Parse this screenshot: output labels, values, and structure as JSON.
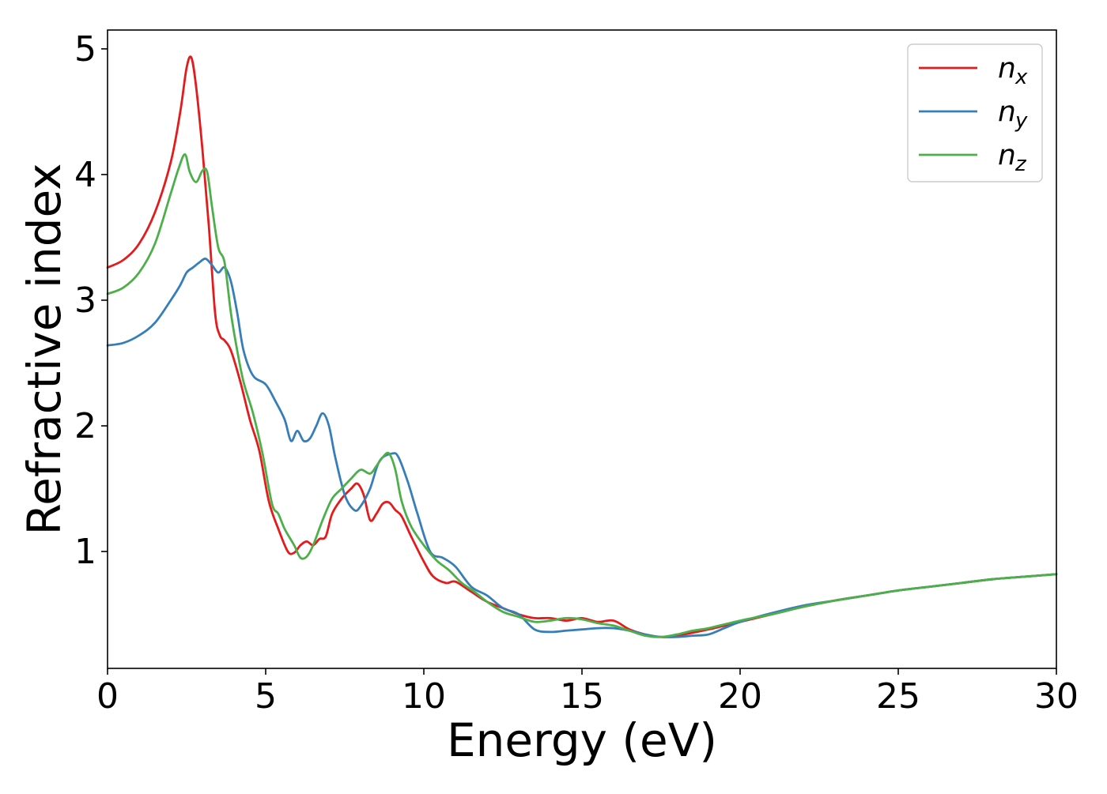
{
  "chart_data": {
    "type": "line",
    "title": "",
    "xlabel": "Energy (eV)",
    "ylabel": "Refractive index",
    "xlim": [
      0,
      30
    ],
    "ylim": [
      0.07,
      5.15
    ],
    "xticks": [
      0,
      5,
      10,
      15,
      20,
      25,
      30
    ],
    "yticks": [
      1,
      2,
      3,
      4,
      5
    ],
    "grid": false,
    "legend_position": "top-right",
    "series": [
      {
        "name": "n",
        "subscript": "x",
        "color": "#e41a1c",
        "x": [
          0,
          0.5,
          1,
          1.5,
          2,
          2.3,
          2.5,
          2.65,
          2.8,
          3.0,
          3.2,
          3.4,
          3.55,
          3.7,
          3.9,
          4.2,
          4.5,
          4.8,
          5.1,
          5.4,
          5.7,
          5.9,
          6.1,
          6.3,
          6.5,
          6.7,
          6.9,
          7.1,
          7.4,
          7.7,
          7.9,
          8.1,
          8.3,
          8.5,
          8.7,
          8.9,
          9.1,
          9.3,
          9.6,
          10.0,
          10.3,
          10.7,
          11.0,
          11.5,
          12.0,
          12.5,
          13.0,
          13.5,
          14.0,
          14.5,
          15.0,
          15.5,
          16.0,
          16.5,
          17.0,
          17.5,
          18.0,
          19.0,
          20.0,
          21.0,
          22.0,
          23.0,
          24.0,
          25.0,
          26.0,
          27.0,
          28.0,
          29.0,
          30.0
        ],
        "y": [
          3.26,
          3.32,
          3.45,
          3.7,
          4.1,
          4.5,
          4.85,
          4.93,
          4.7,
          4.2,
          3.6,
          2.9,
          2.72,
          2.68,
          2.6,
          2.35,
          2.05,
          1.8,
          1.4,
          1.18,
          1.0,
          0.99,
          1.05,
          1.08,
          1.05,
          1.1,
          1.12,
          1.3,
          1.42,
          1.5,
          1.54,
          1.45,
          1.25,
          1.3,
          1.38,
          1.39,
          1.33,
          1.28,
          1.12,
          0.92,
          0.8,
          0.75,
          0.76,
          0.68,
          0.6,
          0.55,
          0.5,
          0.47,
          0.47,
          0.45,
          0.47,
          0.44,
          0.45,
          0.38,
          0.34,
          0.32,
          0.33,
          0.38,
          0.44,
          0.5,
          0.56,
          0.61,
          0.65,
          0.69,
          0.72,
          0.75,
          0.78,
          0.8,
          0.82
        ]
      },
      {
        "name": "n",
        "subscript": "y",
        "color": "#377eb8",
        "x": [
          0,
          0.5,
          1,
          1.5,
          2,
          2.3,
          2.5,
          2.7,
          2.9,
          3.1,
          3.3,
          3.5,
          3.7,
          3.9,
          4.1,
          4.3,
          4.6,
          5.0,
          5.3,
          5.6,
          5.8,
          6.0,
          6.2,
          6.4,
          6.6,
          6.8,
          7.0,
          7.2,
          7.5,
          7.8,
          8.0,
          8.3,
          8.6,
          9.0,
          9.2,
          9.5,
          9.8,
          10.2,
          10.6,
          11.0,
          11.5,
          12.0,
          12.5,
          13.0,
          13.5,
          14.0,
          14.5,
          15.0,
          15.5,
          16.0,
          16.5,
          17.0,
          17.5,
          18.0,
          18.5,
          19.0,
          19.5,
          20.0,
          21.0,
          22.0,
          23.0,
          24.0,
          25.0,
          26.0,
          27.0,
          28.0,
          29.0,
          30.0
        ],
        "y": [
          2.64,
          2.66,
          2.72,
          2.82,
          3.0,
          3.12,
          3.22,
          3.26,
          3.3,
          3.33,
          3.28,
          3.22,
          3.26,
          3.15,
          2.9,
          2.6,
          2.4,
          2.33,
          2.2,
          2.05,
          1.88,
          1.96,
          1.88,
          1.9,
          2.0,
          2.1,
          2.0,
          1.75,
          1.45,
          1.33,
          1.36,
          1.5,
          1.72,
          1.78,
          1.75,
          1.55,
          1.3,
          1.0,
          0.95,
          0.88,
          0.72,
          0.65,
          0.55,
          0.5,
          0.38,
          0.36,
          0.37,
          0.38,
          0.39,
          0.39,
          0.37,
          0.34,
          0.32,
          0.32,
          0.33,
          0.34,
          0.39,
          0.44,
          0.51,
          0.57,
          0.61,
          0.65,
          0.69,
          0.72,
          0.75,
          0.78,
          0.8,
          0.82
        ]
      },
      {
        "name": "n",
        "subscript": "z",
        "color": "#4daf4a",
        "x": [
          0,
          0.5,
          1,
          1.5,
          2,
          2.25,
          2.45,
          2.6,
          2.8,
          3.0,
          3.15,
          3.3,
          3.5,
          3.7,
          3.9,
          4.1,
          4.3,
          4.6,
          4.9,
          5.2,
          5.4,
          5.6,
          5.9,
          6.1,
          6.3,
          6.5,
          6.8,
          7.1,
          7.4,
          7.7,
          8.0,
          8.3,
          8.5,
          8.7,
          8.9,
          9.1,
          9.3,
          9.6,
          10.0,
          10.4,
          10.8,
          11.2,
          11.6,
          12.0,
          12.5,
          13.0,
          13.5,
          14.0,
          14.5,
          15.0,
          15.5,
          16.0,
          16.5,
          17.0,
          17.5,
          18.0,
          18.5,
          19.0,
          20.0,
          21.0,
          22.0,
          23.0,
          24.0,
          25.0,
          26.0,
          27.0,
          28.0,
          29.0,
          30.0
        ],
        "y": [
          3.05,
          3.1,
          3.22,
          3.45,
          3.85,
          4.05,
          4.16,
          4.02,
          3.94,
          4.03,
          4.02,
          3.75,
          3.42,
          3.3,
          2.9,
          2.6,
          2.35,
          2.1,
          1.78,
          1.38,
          1.3,
          1.18,
          1.05,
          0.95,
          0.96,
          1.05,
          1.25,
          1.42,
          1.5,
          1.58,
          1.65,
          1.62,
          1.68,
          1.75,
          1.78,
          1.65,
          1.4,
          1.2,
          1.05,
          0.93,
          0.85,
          0.75,
          0.68,
          0.6,
          0.52,
          0.48,
          0.44,
          0.45,
          0.47,
          0.46,
          0.43,
          0.41,
          0.37,
          0.33,
          0.32,
          0.34,
          0.37,
          0.39,
          0.45,
          0.5,
          0.56,
          0.61,
          0.65,
          0.69,
          0.72,
          0.75,
          0.78,
          0.8,
          0.82
        ]
      }
    ]
  }
}
